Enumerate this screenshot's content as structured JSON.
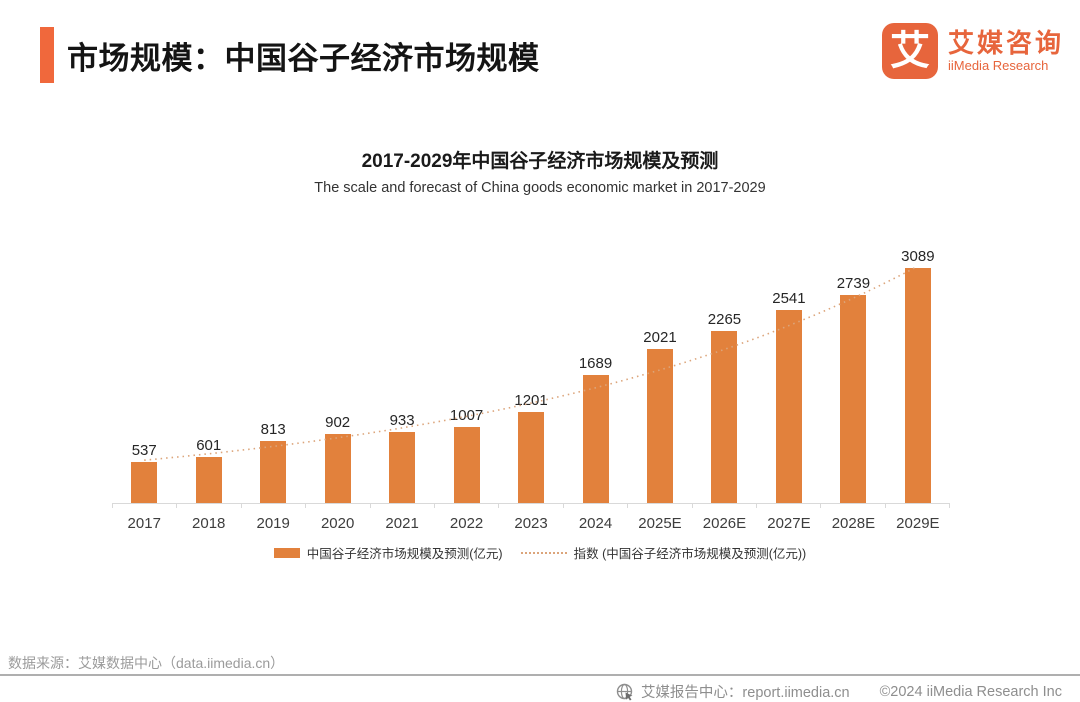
{
  "header": {
    "title": "市场规模：中国谷子经济市场规模",
    "logo": {
      "glyph": "艾",
      "name_cn": "艾媒咨询",
      "name_en": "iiMedia Research"
    }
  },
  "chart_data": {
    "type": "bar",
    "title": "2017-2029年中国谷子经济市场规模及预测",
    "subtitle": "The scale and forecast of China goods economic market in 2017-2029",
    "categories": [
      "2017",
      "2018",
      "2019",
      "2020",
      "2021",
      "2022",
      "2023",
      "2024",
      "2025E",
      "2026E",
      "2027E",
      "2028E",
      "2029E"
    ],
    "values": [
      537,
      601,
      813,
      902,
      933,
      1007,
      1201,
      1689,
      2021,
      2265,
      2541,
      2739,
      3089
    ],
    "unit": "亿元",
    "series_label": "中国谷子经济市场规模及预测(亿元)",
    "trendline": {
      "label": "指数 (中国谷子经济市场规模及预测(亿元))",
      "type": "exponential"
    },
    "xlabel": "",
    "ylabel": "",
    "ylim": [
      0,
      3300
    ],
    "grid": false,
    "data_labels": true,
    "legend_position": "bottom"
  },
  "legend": {
    "bar_label": "中国谷子经济市场规模及预测(亿元)",
    "line_label": "指数 (中国谷子经济市场规模及预测(亿元))"
  },
  "footer": {
    "source": "数据来源：艾媒数据中心（data.iimedia.cn）",
    "report_center": "艾媒报告中心：report.iimedia.cn",
    "copyright": "©2024  iiMedia Research Inc"
  },
  "colors": {
    "bar": "#E2813C",
    "accent": "#F0683C",
    "trend": "#DCA57B"
  }
}
